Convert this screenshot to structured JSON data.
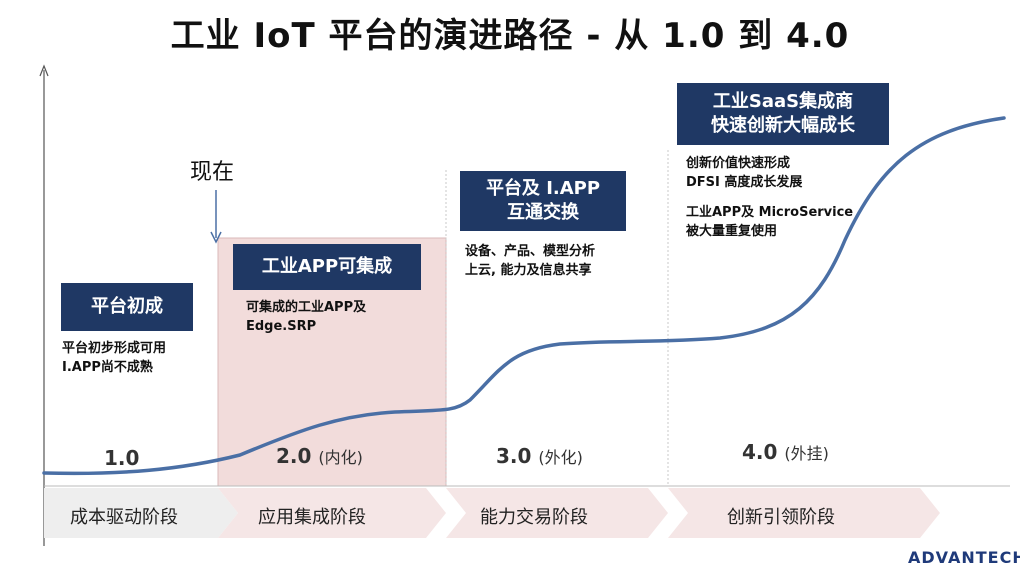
{
  "title": "工业 IoT 平台的演进路径 - 从 1.0 到 4.0",
  "now_label": "现在",
  "phases": [
    {
      "box_lines": [
        "平台初成"
      ],
      "desc_lines": [
        "平台初步形成可用",
        "I.APP尚不成熟"
      ],
      "version": "1.0",
      "version_sub": "",
      "stage": "成本驱动阶段"
    },
    {
      "box_lines": [
        "工业APP可集成"
      ],
      "desc_lines": [
        "可集成的工业APP及",
        "Edge.SRP"
      ],
      "version": "2.0",
      "version_sub": "(内化)",
      "stage": "应用集成阶段"
    },
    {
      "box_lines": [
        "平台及 I.APP",
        "互通交换"
      ],
      "desc_lines": [
        "设备、产品、模型分析",
        "上云, 能力及信息共享"
      ],
      "version": "3.0",
      "version_sub": "(外化)",
      "stage": "能力交易阶段"
    },
    {
      "box_lines": [
        "工业SaaS集成商",
        "快速创新大幅成长"
      ],
      "desc_lines": [
        "创新价值快速形成",
        "DFSI 高度成长发展",
        "工业APP及 MicroService",
        "被大量重复使用"
      ],
      "version": "4.0",
      "version_sub": "(外挂)",
      "stage": "创新引领阶段"
    }
  ],
  "logo": "ADVANTECH",
  "colors": {
    "navy": "#1f3864",
    "curve": "#4a6fa5",
    "highlight": "#f2dcdb",
    "chevron": "#f5e6e6",
    "chevron_first": "#eeeeee"
  }
}
